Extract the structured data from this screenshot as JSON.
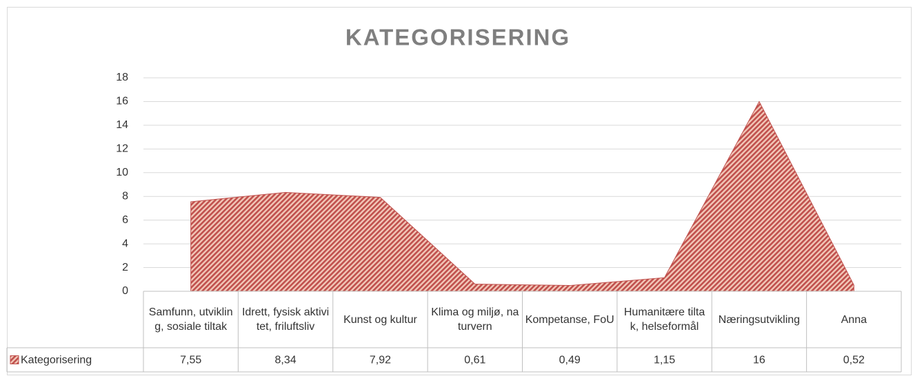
{
  "chart_data": {
    "type": "area",
    "title": "KATEGORISERING",
    "categories": [
      "Samfunn, utvikling, sosiale tiltak",
      "Idrett, fysisk aktivitet, friluftsliv",
      "Kunst og kultur",
      "Klima og miljø, naturvern",
      "Kompetanse, FoU",
      "Humanitære tiltak, helseformål",
      "Næringsutvikling",
      "Anna"
    ],
    "series": [
      {
        "name": "Kategorisering",
        "color": "#c0504d",
        "values": [
          7.55,
          8.34,
          7.92,
          0.61,
          0.49,
          1.15,
          16,
          0.52
        ],
        "value_labels": [
          "7,55",
          "8,34",
          "7,92",
          "0,61",
          "0,49",
          "1,15",
          "16",
          "0,52"
        ]
      }
    ],
    "ylim": [
      0,
      18
    ],
    "yticks": [
      0,
      2,
      4,
      6,
      8,
      10,
      12,
      14,
      16,
      18
    ],
    "grid": true,
    "data_table": true
  }
}
